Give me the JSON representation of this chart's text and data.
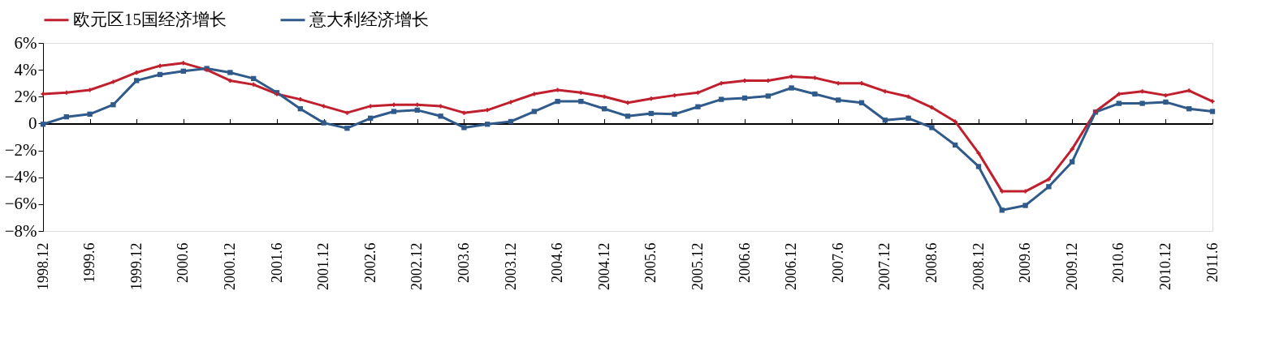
{
  "chart_data": {
    "type": "line",
    "categories": [
      "1998.12",
      null,
      "1999.6",
      null,
      "1999.12",
      null,
      "2000.6",
      null,
      "2000.12",
      null,
      "2001.6",
      null,
      "2001.12",
      null,
      "2002.6",
      null,
      "2002.12",
      null,
      "2003.6",
      null,
      "2003.12",
      null,
      "2004.6",
      null,
      "2004.12",
      null,
      "2005.6",
      null,
      "2005.12",
      null,
      "2006.6",
      null,
      "2006.12",
      null,
      "2007.6",
      null,
      "2007.12",
      null,
      "2008.6",
      null,
      "2008.12",
      null,
      "2009.6",
      null,
      "2009.12",
      null,
      "2010.6",
      null,
      "2010.12",
      null,
      "2011.6"
    ],
    "series": [
      {
        "name": "欧元区15国经济增长",
        "color": "#c0202e",
        "marker": "cross",
        "values": [
          2.2,
          2.3,
          2.5,
          3.1,
          3.8,
          4.3,
          4.5,
          4.0,
          3.2,
          2.9,
          2.2,
          1.8,
          1.3,
          0.8,
          1.3,
          1.4,
          1.4,
          1.3,
          0.8,
          1.0,
          1.6,
          2.2,
          2.5,
          2.3,
          2.0,
          1.55,
          1.85,
          2.1,
          2.3,
          3.0,
          3.2,
          3.2,
          3.5,
          3.4,
          3.0,
          3.0,
          2.4,
          2.0,
          1.2,
          0.15,
          -2.2,
          -5.05,
          -5.05,
          -4.15,
          -1.9,
          0.9,
          2.2,
          2.4,
          2.1,
          2.45,
          1.65
        ]
      },
      {
        "name": "意大利经济增长",
        "color": "#2f5a8a",
        "marker": "square",
        "values": [
          -0.05,
          0.5,
          0.7,
          1.4,
          3.2,
          3.65,
          3.9,
          4.1,
          3.8,
          3.35,
          2.3,
          1.1,
          0.05,
          -0.35,
          0.4,
          0.9,
          1.0,
          0.55,
          -0.3,
          -0.05,
          0.15,
          0.9,
          1.65,
          1.65,
          1.1,
          0.55,
          0.75,
          0.7,
          1.25,
          1.8,
          1.9,
          2.05,
          2.65,
          2.2,
          1.75,
          1.55,
          0.25,
          0.4,
          -0.3,
          -1.6,
          -3.2,
          -6.45,
          -6.1,
          -4.7,
          -2.85,
          0.85,
          1.5,
          1.5,
          1.6,
          1.1,
          0.9
        ]
      }
    ],
    "ylim": [
      -8,
      6
    ],
    "yticks": [
      {
        "value": -8,
        "label": "−8%"
      },
      {
        "value": -6,
        "label": "−6%"
      },
      {
        "value": -4,
        "label": "−4%"
      },
      {
        "value": -2,
        "label": "−2%"
      },
      0,
      {
        "value": 2,
        "label": "2%"
      },
      {
        "value": 4,
        "label": "4%"
      },
      {
        "value": 6,
        "label": "6%"
      }
    ],
    "legend": "top"
  }
}
